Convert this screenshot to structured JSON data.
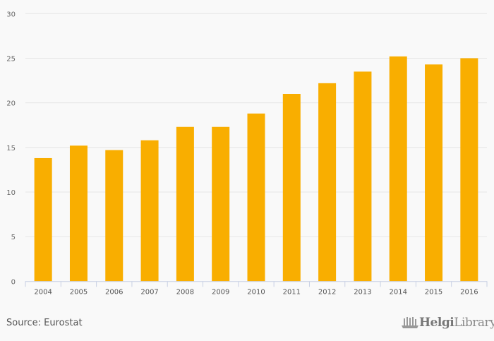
{
  "chart_data": {
    "type": "bar",
    "title": "",
    "xlabel": "",
    "ylabel": "",
    "categories": [
      "2004",
      "2005",
      "2006",
      "2007",
      "2008",
      "2009",
      "2010",
      "2011",
      "2012",
      "2013",
      "2014",
      "2015",
      "2016"
    ],
    "values": [
      13.8,
      15.2,
      14.7,
      15.8,
      17.3,
      17.3,
      18.8,
      21.0,
      22.2,
      23.5,
      25.2,
      24.3,
      25.0
    ],
    "ylim": [
      0,
      30
    ],
    "yticks": [
      0,
      5,
      10,
      15,
      20,
      25,
      30
    ],
    "grid": true,
    "bar_color": "#f9ae00",
    "grid_color": "#e6e6e6"
  },
  "footer": {
    "source": "Source: Eurostat",
    "logo_bold": "Helgi",
    "logo_rest": "Library."
  }
}
